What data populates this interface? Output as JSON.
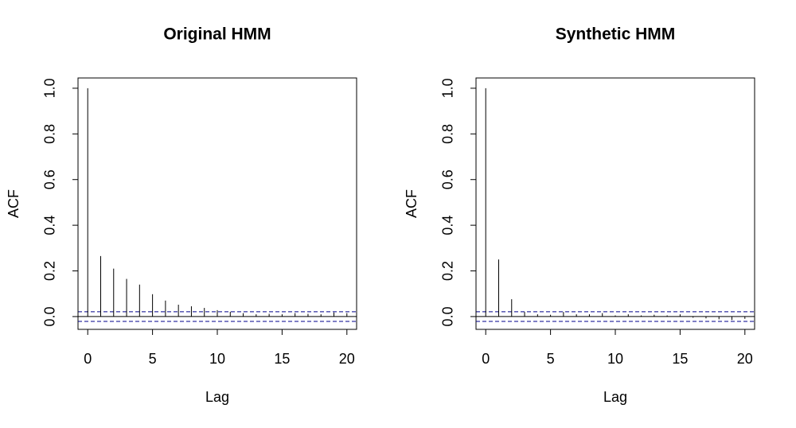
{
  "chart_data": [
    {
      "type": "acf",
      "title": "Original HMM",
      "x_label": "Lag",
      "y_label": "ACF",
      "x": [
        0,
        1,
        2,
        3,
        4,
        5,
        6,
        7,
        8,
        9,
        10,
        11,
        12,
        13,
        14,
        15,
        16,
        17,
        18,
        19,
        20
      ],
      "values": [
        1.0,
        0.265,
        0.21,
        0.165,
        0.14,
        0.098,
        0.07,
        0.052,
        0.045,
        0.038,
        0.028,
        0.021,
        0.015,
        0.01,
        0.012,
        0.01,
        0.015,
        0.012,
        0.01,
        0.018,
        0.015
      ],
      "ci_bounds": [
        -0.021,
        0.021
      ],
      "color": "#000000",
      "ci_color": "#00008b",
      "xlim": [
        -0.75,
        20.75
      ],
      "ylim": [
        -0.056,
        1.045
      ],
      "xticks": [
        0,
        5,
        10,
        15,
        20
      ],
      "yticks": [
        {
          "value": 0,
          "label": "0.0"
        },
        0.2,
        0.4,
        0.6,
        0.8,
        {
          "value": 1,
          "label": "1.0"
        }
      ]
    },
    {
      "type": "acf",
      "title": "Synthetic HMM",
      "x_label": "Lag",
      "y_label": "ACF",
      "x": [
        0,
        1,
        2,
        3,
        4,
        5,
        6,
        7,
        8,
        9,
        10,
        11,
        12,
        13,
        14,
        15,
        16,
        17,
        18,
        19,
        20
      ],
      "values": [
        1.0,
        0.25,
        0.076,
        0.02,
        0.01,
        0.008,
        0.02,
        0.01,
        0.01,
        0.015,
        0.005,
        0.01,
        0.005,
        0.008,
        0.005,
        0.01,
        -0.005,
        -0.008,
        -0.012,
        -0.015,
        -0.01
      ],
      "ci_bounds": [
        -0.021,
        0.021
      ],
      "color": "#000000",
      "ci_color": "#00008b",
      "xlim": [
        -0.75,
        20.75
      ],
      "ylim": [
        -0.056,
        1.045
      ],
      "xticks": [
        0,
        5,
        10,
        15,
        20
      ],
      "yticks": [
        {
          "value": 0,
          "label": "0.0"
        },
        0.2,
        0.4,
        0.6,
        0.8,
        {
          "value": 1,
          "label": "1.0"
        }
      ]
    }
  ]
}
